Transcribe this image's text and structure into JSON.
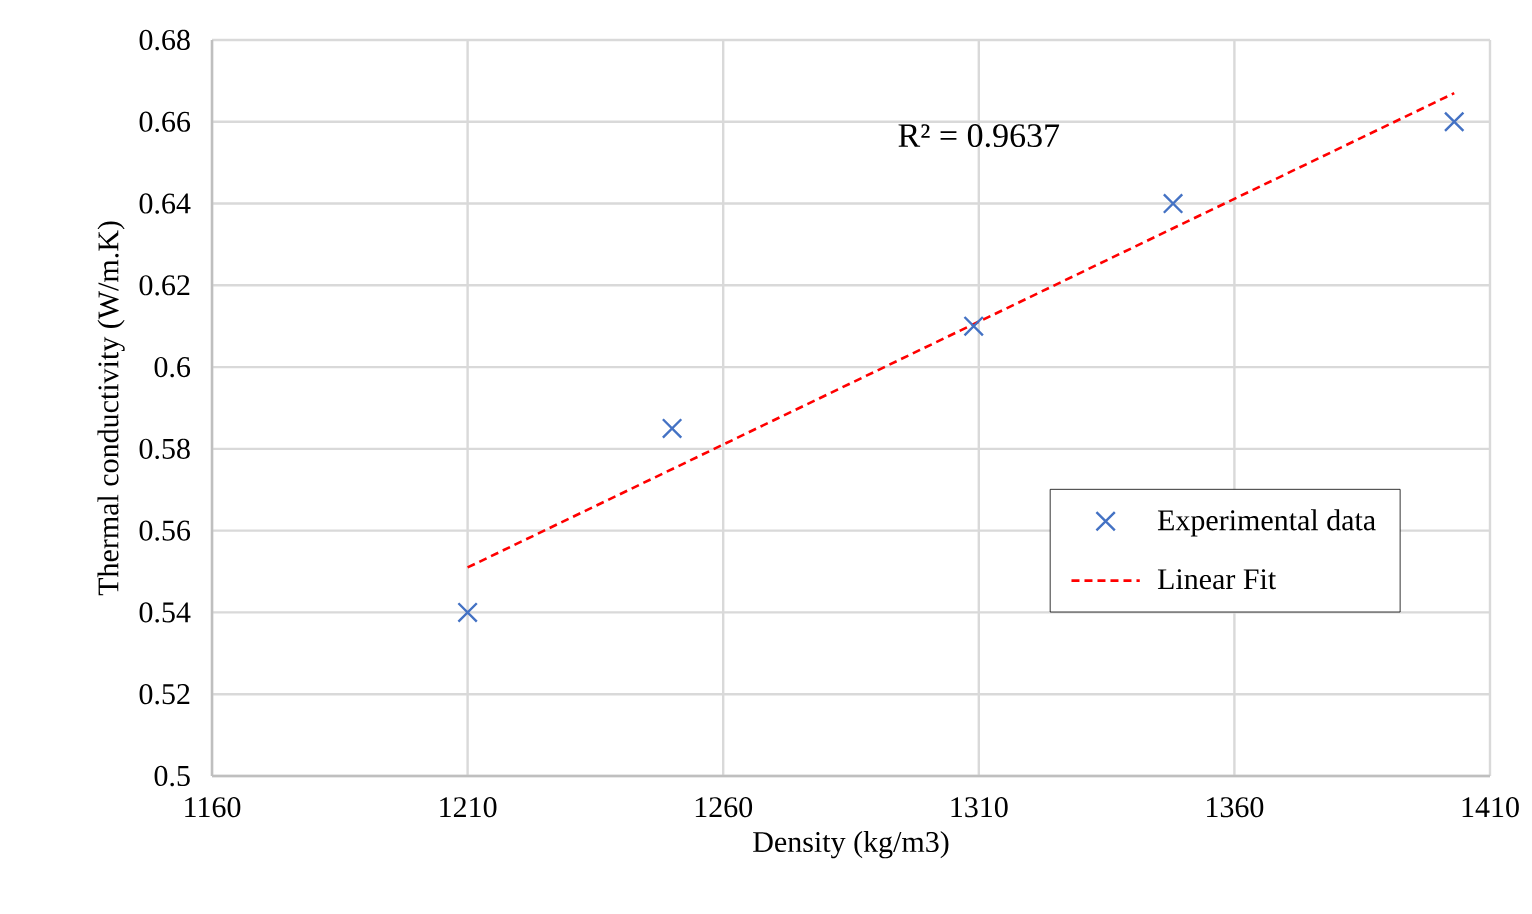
{
  "chart_data": {
    "type": "scatter",
    "xlabel": "Density (kg/m3)",
    "ylabel": "Thermal conductivity (W/m.K)",
    "series": [
      {
        "name": "Experimental data",
        "color": "#4472c4",
        "marker": "cross",
        "x": [
          1210,
          1250,
          1309,
          1348,
          1403
        ],
        "values": [
          0.54,
          0.585,
          0.61,
          0.64,
          0.66
        ]
      },
      {
        "name": "Linear Fit",
        "type": "line",
        "color": "#ff0000",
        "line_style": "dashed",
        "marker": "none",
        "x": [
          1210,
          1403
        ],
        "values": [
          0.551,
          0.667
        ]
      }
    ],
    "annotations": [
      "R² = 0.9637"
    ],
    "xlim": [
      1160,
      1410
    ],
    "xticks": [
      1160,
      1210,
      1260,
      1310,
      1360,
      1410
    ],
    "ylim": [
      0.5,
      0.68
    ],
    "yticks": [
      0.5,
      0.52,
      0.54,
      0.56,
      0.58,
      0.6,
      0.62,
      0.64,
      0.66,
      0.68
    ],
    "grid": true,
    "legend": "bottom right"
  }
}
